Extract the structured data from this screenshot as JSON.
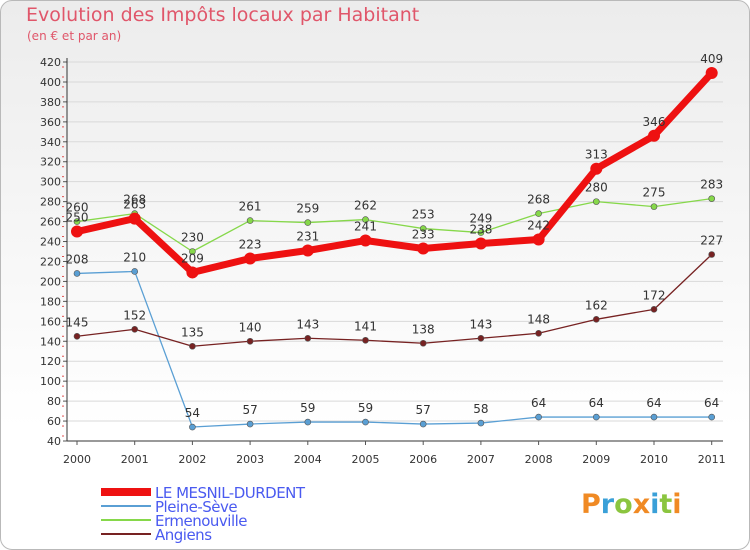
{
  "chart_data": {
    "type": "line",
    "title": "Evolution des Impôts locaux par Habitant",
    "subtitle": "(en € et par an)",
    "categories": [
      "2000",
      "2001",
      "2002",
      "2003",
      "2004",
      "2005",
      "2006",
      "2007",
      "2008",
      "2009",
      "2010",
      "2011"
    ],
    "ylim": [
      40,
      420
    ],
    "yticks": [
      40,
      60,
      80,
      100,
      120,
      140,
      160,
      180,
      200,
      220,
      240,
      260,
      280,
      300,
      320,
      340,
      360,
      380,
      400,
      420
    ],
    "series": [
      {
        "name": "LE MESNIL-DURDENT",
        "color": "#ee1111",
        "values": [
          250,
          263,
          209,
          223,
          231,
          241,
          233,
          238,
          242,
          313,
          346,
          409
        ]
      },
      {
        "name": "Pleine-Sève",
        "color": "#5a9fd4",
        "values": [
          208,
          210,
          54,
          57,
          59,
          59,
          57,
          58,
          64,
          64,
          64,
          64
        ]
      },
      {
        "name": "Ermenouville",
        "color": "#86d84a",
        "values": [
          260,
          268,
          230,
          261,
          259,
          262,
          253,
          249,
          268,
          280,
          275,
          283
        ]
      },
      {
        "name": "Angiens",
        "color": "#772222",
        "values": [
          145,
          152,
          135,
          140,
          143,
          141,
          138,
          143,
          148,
          162,
          172,
          227
        ]
      }
    ]
  },
  "logo": {
    "text": "Prox",
    "text_i": "i",
    "text_end": "ti"
  }
}
